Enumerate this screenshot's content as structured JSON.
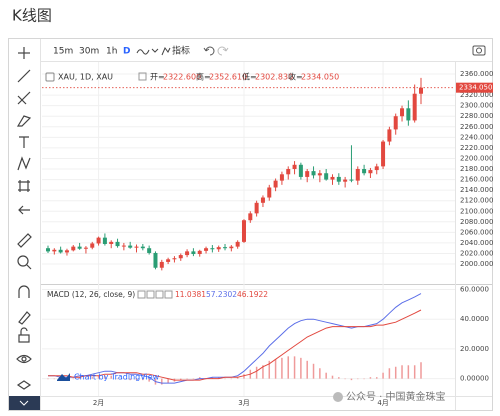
{
  "header": {
    "title": "K线图"
  },
  "toolbar": {
    "intervals": [
      "15m",
      "30m",
      "1h",
      "D"
    ],
    "indicators": "指标"
  },
  "chart_data": [
    {
      "type": "candlestick",
      "title": "XAU, 1D, XAU",
      "ohlc_legend": [
        {
          "name": "开=",
          "text": "2322.600"
        },
        {
          "name": "高=",
          "text": "2352.610"
        },
        {
          "name": "低=",
          "text": "2302.830"
        },
        {
          "name": "收=",
          "text": "2334.050"
        }
      ],
      "last_price": {
        "value": 2334.05,
        "label": "2334.050"
      },
      "categories": [
        null,
        null,
        null,
        null,
        null,
        null,
        null,
        null,
        "2月",
        null,
        null,
        null,
        null,
        null,
        null,
        null,
        null,
        null,
        null,
        null,
        null,
        null,
        null,
        null,
        null,
        null,
        null,
        null,
        null,
        null,
        null,
        "3月",
        null,
        null,
        null,
        null,
        null,
        null,
        null,
        null,
        null,
        null,
        null,
        null,
        null,
        null,
        null,
        null,
        null,
        null,
        null,
        null,
        null,
        "4月",
        null,
        null,
        null,
        null,
        null,
        null
      ],
      "open": [
        2030,
        2024,
        2027,
        2022,
        2026,
        2033,
        2029,
        2031,
        2039,
        2050,
        2038,
        2042,
        2034,
        2035,
        2031,
        2033,
        2030,
        2021,
        1993,
        2004,
        2009,
        2011,
        2017,
        2024,
        2019,
        2025,
        2030,
        2028,
        2032,
        2030,
        2033,
        2042,
        2083,
        2096,
        2116,
        2126,
        2145,
        2158,
        2170,
        2180,
        2188,
        2165,
        2176,
        2168,
        2172,
        2160,
        2165,
        2156,
        2160,
        2158,
        2180,
        2172,
        2178,
        2185,
        2232,
        2255,
        2280,
        2295,
        2272,
        2322.6
      ],
      "high": [
        2035,
        2030,
        2033,
        2029,
        2036,
        2040,
        2034,
        2042,
        2052,
        2058,
        2045,
        2048,
        2040,
        2042,
        2037,
        2038,
        2035,
        2024,
        2008,
        2012,
        2015,
        2020,
        2028,
        2030,
        2027,
        2033,
        2036,
        2035,
        2038,
        2036,
        2045,
        2085,
        2100,
        2120,
        2130,
        2150,
        2162,
        2175,
        2185,
        2195,
        2192,
        2180,
        2185,
        2178,
        2180,
        2170,
        2172,
        2165,
        2225,
        2185,
        2188,
        2182,
        2190,
        2235,
        2260,
        2285,
        2300,
        2310,
        2340,
        2352.61
      ],
      "low": [
        2021,
        2018,
        2020,
        2016,
        2024,
        2027,
        2020,
        2028,
        2035,
        2035,
        2030,
        2031,
        2026,
        2029,
        2022,
        2026,
        2018,
        1990,
        1988,
        2000,
        2003,
        2006,
        2013,
        2015,
        2014,
        2020,
        2022,
        2023,
        2026,
        2024,
        2029,
        2040,
        2078,
        2090,
        2108,
        2120,
        2138,
        2150,
        2160,
        2170,
        2160,
        2155,
        2162,
        2155,
        2158,
        2150,
        2150,
        2145,
        2155,
        2150,
        2168,
        2163,
        2170,
        2180,
        2225,
        2245,
        2270,
        2262,
        2268,
        2302.83
      ],
      "close": [
        2024,
        2027,
        2022,
        2026,
        2033,
        2029,
        2031,
        2039,
        2050,
        2038,
        2042,
        2034,
        2035,
        2031,
        2033,
        2030,
        2021,
        1993,
        2004,
        2009,
        2011,
        2017,
        2024,
        2019,
        2025,
        2030,
        2028,
        2032,
        2030,
        2033,
        2042,
        2083,
        2096,
        2116,
        2126,
        2145,
        2158,
        2170,
        2180,
        2188,
        2165,
        2176,
        2168,
        2172,
        2160,
        2165,
        2156,
        2160,
        2158,
        2180,
        2172,
        2178,
        2185,
        2232,
        2255,
        2280,
        2295,
        2272,
        2322.6,
        2334.05
      ],
      "up_color": "#e2483f",
      "down_color": "#2a9d74",
      "ylim": [
        1966,
        2377
      ],
      "yticks": [
        {
          "value": 2360,
          "label": "2360.000"
        },
        {
          "value": 2320,
          "label": "2320.000"
        },
        {
          "value": 2300,
          "label": "2300.000"
        },
        {
          "value": 2280,
          "label": "2280.000"
        },
        {
          "value": 2260,
          "label": "2260.000"
        },
        {
          "value": 2240,
          "label": "2240.000"
        },
        {
          "value": 2220,
          "label": "2220.000"
        },
        {
          "value": 2200,
          "label": "2200.000"
        },
        {
          "value": 2180,
          "label": "2180.000"
        },
        {
          "value": 2160,
          "label": "2160.000"
        },
        {
          "value": 2140,
          "label": "2140.000"
        },
        {
          "value": 2120,
          "label": "2120.000"
        },
        {
          "value": 2100,
          "label": "2100.000"
        },
        {
          "value": 2080,
          "label": "2080.000"
        },
        {
          "value": 2060,
          "label": "2060.000"
        },
        {
          "value": 2040,
          "label": "2040.000"
        },
        {
          "value": 2020,
          "label": "2020.000"
        },
        {
          "value": 2000,
          "label": "2000.000"
        }
      ],
      "grid": true
    },
    {
      "type": "macd",
      "title": "MACD (12, 26, close, 9)",
      "series": [
        {
          "name": "Histogram",
          "kind": "bar",
          "color": "#ef9a9a",
          "values": [
            0,
            0,
            -1,
            -1,
            0,
            1,
            0,
            1,
            2,
            2,
            2,
            0,
            0,
            -1,
            -1,
            -1,
            -2,
            -4,
            -4,
            -3,
            -2,
            -1,
            0,
            0,
            1,
            0,
            1,
            1,
            0,
            0,
            1,
            3,
            6,
            8,
            9,
            12,
            13,
            14,
            15,
            15,
            14,
            12,
            10,
            7,
            4,
            2,
            1,
            0,
            -1,
            0,
            0,
            1,
            1,
            4,
            7,
            8,
            9,
            9,
            9,
            11.0381
          ]
        },
        {
          "name": "MACD",
          "kind": "line",
          "color": "#5b6ee8",
          "values": [
            2,
            2,
            1,
            1,
            1,
            2,
            2,
            3,
            4,
            5,
            5,
            4,
            4,
            3,
            3,
            2,
            1,
            -2,
            -3,
            -3,
            -3,
            -2,
            -1,
            -1,
            0,
            0,
            1,
            1,
            1,
            1,
            2,
            5,
            9,
            13,
            17,
            22,
            26,
            30,
            34,
            37,
            39,
            40,
            40,
            39,
            38,
            37,
            36,
            35,
            34,
            35,
            35,
            36,
            37,
            40,
            44,
            48,
            51,
            53,
            55,
            57.2302
          ]
        },
        {
          "name": "Signal",
          "kind": "line",
          "color": "#e2483f",
          "values": [
            2,
            2,
            2,
            2,
            1,
            1,
            2,
            2,
            2,
            3,
            3,
            4,
            4,
            4,
            4,
            3,
            3,
            2,
            1,
            0,
            -1,
            -1,
            -1,
            -1,
            -1,
            0,
            0,
            0,
            1,
            1,
            1,
            2,
            3,
            5,
            8,
            10,
            13,
            16,
            19,
            22,
            25,
            28,
            30,
            32,
            34,
            35,
            35,
            35,
            35,
            35,
            35,
            35,
            36,
            36,
            37,
            38,
            40,
            42,
            44,
            46.1922
          ]
        }
      ],
      "ylim": [
        -11,
        63
      ],
      "yticks": [
        {
          "value": 60,
          "label": "60.0000"
        },
        {
          "value": 40,
          "label": "40.0000"
        },
        {
          "value": 20,
          "label": "20.0000"
        },
        {
          "value": 0,
          "label": "0.00000"
        }
      ],
      "grid": true
    }
  ],
  "watermarks": [
    "Chart by TradingView",
    "公众号 · 中国黄金珠宝"
  ]
}
